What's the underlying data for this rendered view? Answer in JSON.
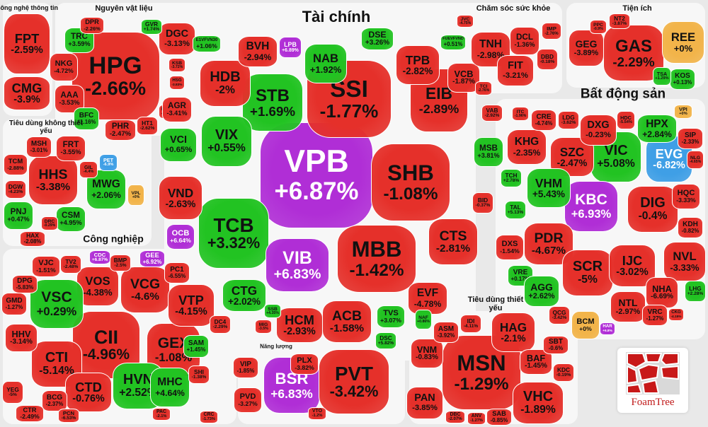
{
  "colors": {
    "down": "#e5302a",
    "up": "#22c322",
    "ceiling": "#b02ed6",
    "floor": "#3f9fe6",
    "ref": "#f2b44a"
  },
  "groups": [
    {
      "title": "Công nghệ thông tin",
      "tiles": [
        {
          "ticker": "FPT",
          "change": "-2.59%",
          "color": "down"
        },
        {
          "ticker": "CMG",
          "change": "-3.9%",
          "color": "down"
        }
      ]
    },
    {
      "title": "Nguyên vật liệu",
      "tiles": [
        {
          "ticker": "HPG",
          "change": "-2.66%",
          "color": "down"
        },
        {
          "ticker": "DGC",
          "change": "-3.13%",
          "color": "down"
        },
        {
          "ticker": "NKG",
          "change": "-4.72%",
          "color": "down"
        },
        {
          "ticker": "TRC",
          "change": "+3.59%",
          "color": "up"
        },
        {
          "ticker": "AAA",
          "change": "-3.53%",
          "color": "down"
        },
        {
          "ticker": "BFC",
          "change": "+1.16%",
          "color": "up"
        },
        {
          "ticker": "PHR",
          "change": "-2.47%",
          "color": "down"
        },
        {
          "ticker": "HT1",
          "change": "-2.62%",
          "color": "down"
        },
        {
          "ticker": "DPR",
          "change": "-2.26%",
          "color": "down"
        },
        {
          "ticker": "GVR",
          "change": "+1.74%",
          "color": "up"
        },
        {
          "ticker": "KSB",
          "change": "-3.72%",
          "color": "down"
        },
        {
          "ticker": "HSG",
          "change": "-3.83%",
          "color": "down"
        },
        {
          "ticker": "DCM",
          "change": "-3.57%",
          "color": "down"
        }
      ]
    },
    {
      "title": "Tài chính",
      "tiles": [
        {
          "ticker": "VPB",
          "change": "+6.87%",
          "color": "ceiling"
        },
        {
          "ticker": "SSI",
          "change": "-1.77%",
          "color": "down"
        },
        {
          "ticker": "SHB",
          "change": "-1.08%",
          "color": "down"
        },
        {
          "ticker": "EIB",
          "change": "-2.89%",
          "color": "down"
        },
        {
          "ticker": "STB",
          "change": "+1.69%",
          "color": "up"
        },
        {
          "ticker": "HDB",
          "change": "-2%",
          "color": "down"
        },
        {
          "ticker": "VIX",
          "change": "+0.55%",
          "color": "up"
        },
        {
          "ticker": "TCB",
          "change": "+3.32%",
          "color": "up"
        },
        {
          "ticker": "VND",
          "change": "-2.63%",
          "color": "down"
        },
        {
          "ticker": "VIB",
          "change": "+6.83%",
          "color": "ceiling"
        },
        {
          "ticker": "MBB",
          "change": "-1.42%",
          "color": "down"
        },
        {
          "ticker": "CTS",
          "change": "-2.81%",
          "color": "down"
        },
        {
          "ticker": "CTG",
          "change": "+2.02%",
          "color": "up"
        },
        {
          "ticker": "HCM",
          "change": "-2.93%",
          "color": "down"
        },
        {
          "ticker": "ACB",
          "change": "-1.58%",
          "color": "down"
        },
        {
          "ticker": "EVF",
          "change": "-4.78%",
          "color": "down"
        },
        {
          "ticker": "TVS",
          "change": "+3.07%",
          "color": "up"
        },
        {
          "ticker": "DSC",
          "change": "+5.82%",
          "color": "up"
        },
        {
          "ticker": "NAB",
          "change": "+1.92%",
          "color": "up"
        },
        {
          "ticker": "DSE",
          "change": "+3.26%",
          "color": "up"
        },
        {
          "ticker": "TPB",
          "change": "-2.82%",
          "color": "down"
        },
        {
          "ticker": "VCB",
          "change": "-1.87%",
          "color": "down"
        },
        {
          "ticker": "BVH",
          "change": "-2.94%",
          "color": "down"
        },
        {
          "ticker": "LPB",
          "change": "+6.89%",
          "color": "ceiling"
        },
        {
          "ticker": "VCI",
          "change": "+0.65%",
          "color": "up"
        },
        {
          "ticker": "AGR",
          "change": "-3.41%",
          "color": "down"
        },
        {
          "ticker": "MSB",
          "change": "+3.81%",
          "color": "up"
        },
        {
          "ticker": "BID",
          "change": "-0.37%",
          "color": "down"
        },
        {
          "ticker": "VAB",
          "change": "-2.92%",
          "color": "down"
        },
        {
          "ticker": "TCI",
          "change": "-2.76%",
          "color": "down"
        },
        {
          "ticker": "OCB",
          "change": "+6.64%",
          "color": "ceiling"
        },
        {
          "ticker": "SSB",
          "change": "+4.35%",
          "color": "up"
        },
        {
          "ticker": "MIG",
          "change": "-3.5%",
          "color": "down"
        },
        {
          "ticker": "E1VFVN30",
          "change": "+1.06%",
          "color": "up"
        },
        {
          "ticker": "FUEVFVND",
          "change": "+0.51%",
          "color": "up"
        }
      ]
    },
    {
      "title": "Chăm sóc sức khỏe",
      "tiles": [
        {
          "ticker": "TNH",
          "change": "-2.98%",
          "color": "down"
        },
        {
          "ticker": "DCL",
          "change": "-1.36%",
          "color": "down"
        },
        {
          "ticker": "FIT",
          "change": "-3.21%",
          "color": "down"
        },
        {
          "ticker": "DBD",
          "change": "-0.18%",
          "color": "down"
        },
        {
          "ticker": "IMP",
          "change": "-2.76%",
          "color": "down"
        },
        {
          "ticker": "JVC",
          "change": "-4.75%",
          "color": "down"
        }
      ]
    },
    {
      "title": "Tiện ích",
      "tiles": [
        {
          "ticker": "GAS",
          "change": "-2.29%",
          "color": "down"
        },
        {
          "ticker": "GEG",
          "change": "-3.89%",
          "color": "down"
        },
        {
          "ticker": "REE",
          "change": "+0%",
          "color": "ref"
        },
        {
          "ticker": "KOS",
          "change": "+0.13%",
          "color": "up"
        },
        {
          "ticker": "TSA",
          "change": "+1.29%",
          "color": "up"
        },
        {
          "ticker": "NT2",
          "change": "-3.87%",
          "color": "down"
        },
        {
          "ticker": "PPC",
          "change": "-0.9%",
          "color": "down"
        }
      ]
    },
    {
      "title": "Bất động sản",
      "tiles": [
        {
          "ticker": "VIC",
          "change": "+5.08%",
          "color": "up"
        },
        {
          "ticker": "KBC",
          "change": "+6.93%",
          "color": "ceiling"
        },
        {
          "ticker": "EVG",
          "change": "-6.82%",
          "color": "floor"
        },
        {
          "ticker": "DIG",
          "change": "-0.4%",
          "color": "down"
        },
        {
          "ticker": "SZC",
          "change": "-2.47%",
          "color": "down"
        },
        {
          "ticker": "KHG",
          "change": "-2.35%",
          "color": "down"
        },
        {
          "ticker": "VHM",
          "change": "+5.43%",
          "color": "up"
        },
        {
          "ticker": "PDR",
          "change": "-4.67%",
          "color": "down"
        },
        {
          "ticker": "SCR",
          "change": "-5%",
          "color": "down"
        },
        {
          "ticker": "IJC",
          "change": "-3.02%",
          "color": "down"
        },
        {
          "ticker": "NVL",
          "change": "-3.33%",
          "color": "down"
        },
        {
          "ticker": "DXG",
          "change": "-0.23%",
          "color": "down"
        },
        {
          "ticker": "HPX",
          "change": "+2.84%",
          "color": "up"
        },
        {
          "ticker": "NHA",
          "change": "-6.69%",
          "color": "down"
        },
        {
          "ticker": "NTL",
          "change": "-2.97%",
          "color": "down"
        },
        {
          "ticker": "VRC",
          "change": "-1.27%",
          "color": "down"
        },
        {
          "ticker": "HQC",
          "change": "-3.33%",
          "color": "down"
        },
        {
          "ticker": "KDH",
          "change": "-0.82%",
          "color": "down"
        },
        {
          "ticker": "SIP",
          "change": "-2.33%",
          "color": "down"
        },
        {
          "ticker": "DXS",
          "change": "-1.54%",
          "color": "down"
        },
        {
          "ticker": "VRE",
          "change": "+0.17%",
          "color": "up"
        },
        {
          "ticker": "AGG",
          "change": "+2.62%",
          "color": "up"
        },
        {
          "ticker": "BCM",
          "change": "+0%",
          "color": "ref"
        },
        {
          "ticker": "LHG",
          "change": "+2.28%",
          "color": "up"
        },
        {
          "ticker": "CRE",
          "change": "-4.74%",
          "color": "down"
        },
        {
          "ticker": "LDG",
          "change": "-3.62%",
          "color": "down"
        },
        {
          "ticker": "TCH",
          "change": "+2.78%",
          "color": "up"
        },
        {
          "ticker": "TAL",
          "change": "+5.13%",
          "color": "up"
        },
        {
          "ticker": "QCG",
          "change": "-3.42%",
          "color": "down"
        },
        {
          "ticker": "HAR",
          "change": "+6.8%",
          "color": "ceiling"
        },
        {
          "ticker": "VPI",
          "change": "+0%",
          "color": "ref"
        },
        {
          "ticker": "HDC",
          "change": "-5.54%",
          "color": "down"
        },
        {
          "ticker": "NLG",
          "change": "-4.65%",
          "color": "down"
        },
        {
          "ticker": "ITC",
          "change": "-1.96%",
          "color": "down"
        },
        {
          "ticker": "CKG",
          "change": "-4.15%",
          "color": "down"
        }
      ]
    },
    {
      "title": "Tiêu dùng không thiết yếu",
      "tiles": [
        {
          "ticker": "HHS",
          "change": "-3.38%",
          "color": "down"
        },
        {
          "ticker": "MWG",
          "change": "+2.06%",
          "color": "up"
        },
        {
          "ticker": "PNJ",
          "change": "+0.47%",
          "color": "up"
        },
        {
          "ticker": "CSM",
          "change": "+4.95%",
          "color": "up"
        },
        {
          "ticker": "MSH",
          "change": "-3.01%",
          "color": "down"
        },
        {
          "ticker": "FRT",
          "change": "-3.55%",
          "color": "down"
        },
        {
          "ticker": "TCM",
          "change": "-2.88%",
          "color": "down"
        },
        {
          "ticker": "PET",
          "change": "-6.9%",
          "color": "floor"
        },
        {
          "ticker": "VPL",
          "change": "+0%",
          "color": "ref"
        },
        {
          "ticker": "DGW",
          "change": "-4.23%",
          "color": "down"
        },
        {
          "ticker": "HAX",
          "change": "-2.08%",
          "color": "down"
        },
        {
          "ticker": "GIL",
          "change": "-4.4%",
          "color": "down"
        },
        {
          "ticker": "DRC",
          "change": "-0.29%",
          "color": "down"
        }
      ]
    },
    {
      "title": "Công nghiệp",
      "tiles": [
        {
          "ticker": "CII",
          "change": "-4.96%",
          "color": "down"
        },
        {
          "ticker": "VCG",
          "change": "-4.6%",
          "color": "down"
        },
        {
          "ticker": "GEX",
          "change": "-1.08%",
          "color": "down"
        },
        {
          "ticker": "VOS",
          "change": "-4.38%",
          "color": "down"
        },
        {
          "ticker": "VSC",
          "change": "+0.29%",
          "color": "up"
        },
        {
          "ticker": "VTP",
          "change": "-4.15%",
          "color": "down"
        },
        {
          "ticker": "CTI",
          "change": "-5.14%",
          "color": "down"
        },
        {
          "ticker": "CTD",
          "change": "-0.76%",
          "color": "down"
        },
        {
          "ticker": "HVN",
          "change": "+2.52%",
          "color": "up"
        },
        {
          "ticker": "MHC",
          "change": "+4.64%",
          "color": "up"
        },
        {
          "ticker": "GMD",
          "change": "-1.27%",
          "color": "down"
        },
        {
          "ticker": "HHV",
          "change": "-3.14%",
          "color": "down"
        },
        {
          "ticker": "VJC",
          "change": "-1.51%",
          "color": "down"
        },
        {
          "ticker": "TV2",
          "change": "-2.48%",
          "color": "down"
        },
        {
          "ticker": "BMP",
          "change": "-2.5%",
          "color": "down"
        },
        {
          "ticker": "GEE",
          "change": "+6.92%",
          "color": "ceiling"
        },
        {
          "ticker": "CDC",
          "change": "+6.87%",
          "color": "ceiling"
        },
        {
          "ticker": "PC1",
          "change": "-6.55%",
          "color": "down"
        },
        {
          "ticker": "DPG",
          "change": "-5.83%",
          "color": "down"
        },
        {
          "ticker": "YEG",
          "change": "-5%",
          "color": "down"
        },
        {
          "ticker": "CTR",
          "change": "-2.49%",
          "color": "down"
        },
        {
          "ticker": "BCG",
          "change": "-2.37%",
          "color": "down"
        },
        {
          "ticker": "DC4",
          "change": "-2.29%",
          "color": "down"
        },
        {
          "ticker": "SAM",
          "change": "+1.45%",
          "color": "up"
        },
        {
          "ticker": "SHI",
          "change": "-1.38%",
          "color": "down"
        },
        {
          "ticker": "PCN",
          "change": "-6.53%",
          "color": "down"
        },
        {
          "ticker": "CRC",
          "change": "-1.73%",
          "color": "down"
        },
        {
          "ticker": "PAC",
          "change": "-2.1%",
          "color": "down"
        }
      ]
    },
    {
      "title": "Năng lượng",
      "tiles": [
        {
          "ticker": "BSR",
          "change": "+6.83%",
          "color": "ceiling"
        },
        {
          "ticker": "PVT",
          "change": "-3.42%",
          "color": "down"
        },
        {
          "ticker": "VIP",
          "change": "-1.85%",
          "color": "down"
        },
        {
          "ticker": "PVD",
          "change": "-3.27%",
          "color": "down"
        },
        {
          "ticker": "PLX",
          "change": "-3.82%",
          "color": "down"
        },
        {
          "ticker": "VTO",
          "change": "-1.2%",
          "color": "down"
        }
      ]
    },
    {
      "title": "Tiêu dùng thiết yếu",
      "tiles": [
        {
          "ticker": "MSN",
          "change": "-1.29%",
          "color": "down"
        },
        {
          "ticker": "VNM",
          "change": "-0.83%",
          "color": "down"
        },
        {
          "ticker": "PAN",
          "change": "-3.85%",
          "color": "down"
        },
        {
          "ticker": "HAG",
          "change": "-2.1%",
          "color": "down"
        },
        {
          "ticker": "VHC",
          "change": "-1.89%",
          "color": "down"
        },
        {
          "ticker": "BAF",
          "change": "-1.45%",
          "color": "down"
        },
        {
          "ticker": "ASM",
          "change": "-3.92%",
          "color": "down"
        },
        {
          "ticker": "IDI",
          "change": "-4.11%",
          "color": "down"
        },
        {
          "ticker": "SAB",
          "change": "-0.85%",
          "color": "down"
        },
        {
          "ticker": "SBT",
          "change": "-0.6%",
          "color": "down"
        },
        {
          "ticker": "KDC",
          "change": "-0.19%",
          "color": "down"
        },
        {
          "ticker": "NAF",
          "change": "+0.86%",
          "color": "up"
        },
        {
          "ticker": "DBC",
          "change": "-2.07%",
          "color": "down"
        },
        {
          "ticker": "ANV",
          "change": "-1.27%",
          "color": "down"
        }
      ]
    }
  ],
  "logo": {
    "text": "FoamTree"
  }
}
